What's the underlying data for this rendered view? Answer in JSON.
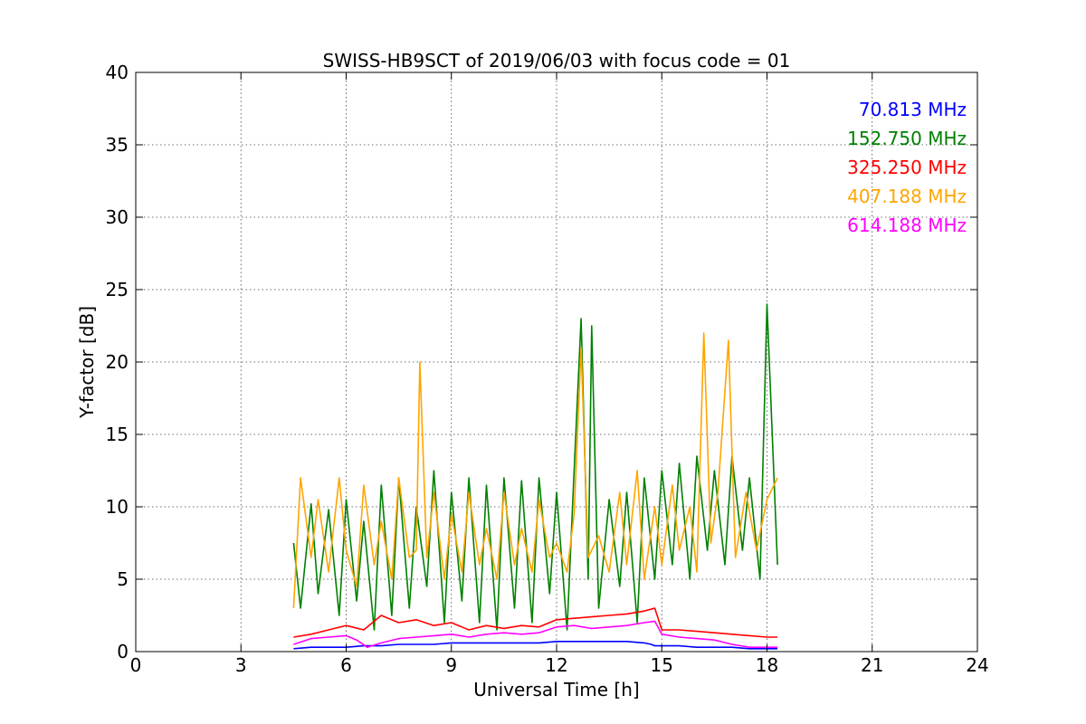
{
  "chart_data": {
    "type": "line",
    "title": "SWISS-HB9SCT of 2019/06/03 with focus code = 01",
    "xlabel": "Universal Time [h]",
    "ylabel": "Y-factor [dB]",
    "xlim": [
      0,
      24
    ],
    "ylim": [
      0,
      40
    ],
    "xticks": [
      "0",
      "3",
      "6",
      "9",
      "12",
      "15",
      "18",
      "21",
      "24"
    ],
    "yticks": [
      "0",
      "5",
      "10",
      "15",
      "20",
      "25",
      "30",
      "35",
      "40"
    ],
    "grid": true,
    "legend_position": "top-right",
    "series": [
      {
        "name": "70.813 MHz",
        "color": "#0000ff",
        "x": [
          4.5,
          5.0,
          5.5,
          6.0,
          6.5,
          7.0,
          7.5,
          8.0,
          8.5,
          9.0,
          9.5,
          10.0,
          10.5,
          11.0,
          11.5,
          12.0,
          12.5,
          13.0,
          13.5,
          14.0,
          14.5,
          14.7,
          14.8,
          15.5,
          16.0,
          16.5,
          17.0,
          17.5,
          18.0,
          18.3
        ],
        "y": [
          0.2,
          0.3,
          0.3,
          0.3,
          0.4,
          0.4,
          0.5,
          0.5,
          0.5,
          0.6,
          0.6,
          0.6,
          0.6,
          0.6,
          0.6,
          0.7,
          0.7,
          0.7,
          0.7,
          0.7,
          0.6,
          0.5,
          0.4,
          0.4,
          0.3,
          0.3,
          0.3,
          0.2,
          0.2,
          0.2
        ]
      },
      {
        "name": "152.750 MHz",
        "color": "#008000",
        "x": [
          4.5,
          4.7,
          5.0,
          5.2,
          5.5,
          5.8,
          6.0,
          6.3,
          6.5,
          6.8,
          7.0,
          7.3,
          7.5,
          7.8,
          8.0,
          8.3,
          8.5,
          8.8,
          9.0,
          9.3,
          9.5,
          9.8,
          10.0,
          10.3,
          10.5,
          10.8,
          11.0,
          11.3,
          11.5,
          11.8,
          12.0,
          12.3,
          12.5,
          12.7,
          12.9,
          13.0,
          13.2,
          13.5,
          13.8,
          14.0,
          14.3,
          14.5,
          14.8,
          15.0,
          15.3,
          15.5,
          15.8,
          16.0,
          16.3,
          16.5,
          16.8,
          17.0,
          17.3,
          17.5,
          17.8,
          18.0,
          18.3
        ],
        "y": [
          7.5,
          3.0,
          10.2,
          4.0,
          9.8,
          2.5,
          10.5,
          3.5,
          9.0,
          1.5,
          11.5,
          2.5,
          12.0,
          3.0,
          10.0,
          4.5,
          12.5,
          2.0,
          11.0,
          3.5,
          12.0,
          2.0,
          11.5,
          1.5,
          12.0,
          3.0,
          11.8,
          2.0,
          12.0,
          4.0,
          11.0,
          1.5,
          12.5,
          23.0,
          5.0,
          22.5,
          3.0,
          10.5,
          4.5,
          11.0,
          2.0,
          12.0,
          5.0,
          12.5,
          6.0,
          13.0,
          5.0,
          13.5,
          7.0,
          12.5,
          6.0,
          13.5,
          7.0,
          12.0,
          5.0,
          24.0,
          6.0
        ]
      },
      {
        "name": "325.250 MHz",
        "color": "#ff0000",
        "x": [
          4.5,
          5.0,
          5.5,
          6.0,
          6.5,
          7.0,
          7.5,
          8.0,
          8.5,
          9.0,
          9.5,
          10.0,
          10.5,
          11.0,
          11.5,
          12.0,
          12.5,
          13.0,
          13.5,
          14.0,
          14.5,
          14.8,
          15.0,
          15.5,
          16.0,
          16.5,
          17.0,
          17.5,
          18.0,
          18.3
        ],
        "y": [
          1.0,
          1.2,
          1.5,
          1.8,
          1.5,
          2.5,
          2.0,
          2.2,
          1.8,
          2.0,
          1.5,
          1.8,
          1.6,
          1.8,
          1.7,
          2.2,
          2.3,
          2.4,
          2.5,
          2.6,
          2.8,
          3.0,
          1.5,
          1.5,
          1.4,
          1.3,
          1.2,
          1.1,
          1.0,
          1.0
        ]
      },
      {
        "name": "407.188 MHz",
        "color": "#ffa500",
        "x": [
          4.5,
          4.7,
          5.0,
          5.2,
          5.5,
          5.8,
          6.0,
          6.3,
          6.5,
          6.8,
          7.0,
          7.3,
          7.5,
          7.8,
          8.0,
          8.1,
          8.3,
          8.5,
          8.8,
          9.0,
          9.3,
          9.5,
          9.8,
          10.0,
          10.3,
          10.5,
          10.8,
          11.0,
          11.3,
          11.5,
          11.8,
          12.0,
          12.3,
          12.5,
          12.7,
          12.9,
          13.2,
          13.5,
          13.8,
          14.0,
          14.3,
          14.5,
          14.8,
          15.0,
          15.3,
          15.5,
          15.8,
          16.0,
          16.2,
          16.4,
          16.6,
          16.9,
          17.1,
          17.4,
          17.7,
          18.0,
          18.3
        ],
        "y": [
          3.0,
          12.0,
          6.5,
          10.5,
          5.5,
          12.0,
          7.0,
          4.5,
          11.5,
          6.0,
          9.0,
          5.0,
          12.0,
          6.5,
          7.0,
          20.0,
          6.5,
          11.0,
          5.0,
          9.5,
          5.5,
          11.0,
          6.0,
          8.5,
          5.0,
          11.0,
          6.0,
          8.5,
          5.5,
          10.5,
          6.5,
          7.5,
          5.5,
          9.5,
          21.0,
          6.5,
          8.0,
          5.5,
          11.0,
          6.0,
          12.5,
          5.0,
          10.0,
          6.0,
          11.5,
          7.0,
          10.0,
          5.5,
          22.0,
          7.5,
          11.0,
          21.5,
          6.5,
          11.0,
          7.0,
          10.5,
          12.0
        ]
      },
      {
        "name": "614.188 MHz",
        "color": "#ff00ff",
        "x": [
          4.5,
          5.0,
          5.5,
          6.0,
          6.3,
          6.6,
          7.0,
          7.5,
          8.0,
          8.5,
          9.0,
          9.5,
          10.0,
          10.5,
          11.0,
          11.5,
          12.0,
          12.5,
          13.0,
          13.5,
          14.0,
          14.5,
          14.8,
          15.0,
          15.5,
          16.0,
          16.5,
          17.0,
          17.5,
          18.0,
          18.3
        ],
        "y": [
          0.5,
          0.9,
          1.0,
          1.1,
          0.8,
          0.3,
          0.6,
          0.9,
          1.0,
          1.1,
          1.2,
          1.0,
          1.2,
          1.3,
          1.2,
          1.3,
          1.7,
          1.8,
          1.6,
          1.7,
          1.8,
          2.0,
          2.1,
          1.2,
          1.0,
          0.9,
          0.8,
          0.5,
          0.3,
          0.3,
          0.3
        ]
      }
    ]
  }
}
